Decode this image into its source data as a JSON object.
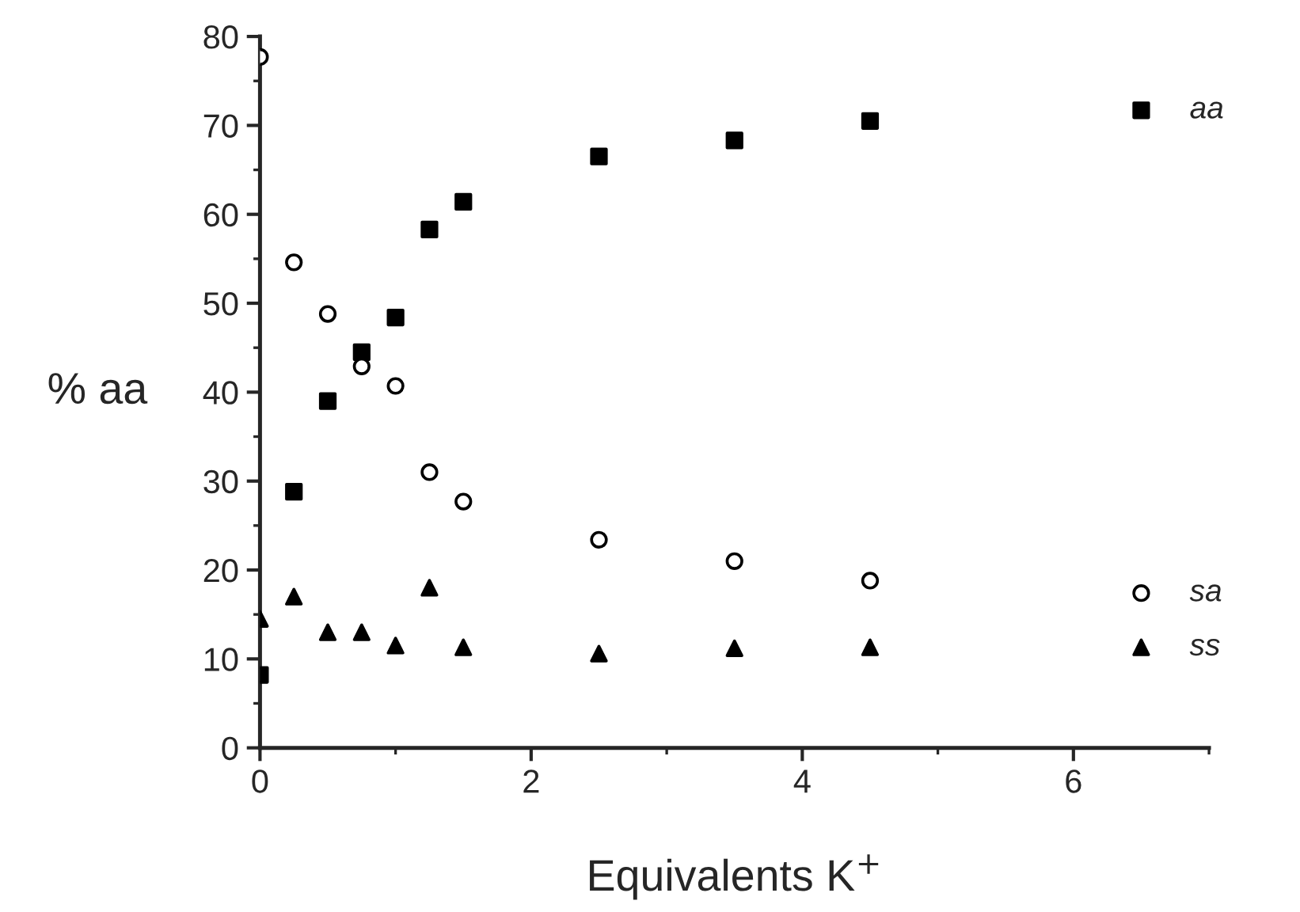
{
  "chart_data": {
    "type": "scatter",
    "xlabel": "Equivalents K$^{+}$",
    "ylabel": "% aa",
    "x": [
      0,
      0.25,
      0.5,
      0.75,
      1,
      1.25,
      1.5,
      2.5,
      3.5,
      4.5,
      6.5
    ],
    "series": [
      {
        "name": "aa",
        "color": "#000000",
        "marker": "square",
        "values": [
          8.2,
          28.8,
          39,
          44.5,
          48.4,
          58.3,
          61.4,
          66.5,
          68.3,
          70.5,
          71.7
        ]
      },
      {
        "name": "sa",
        "color": "#ffffff",
        "marker": "circle",
        "values": [
          77.7,
          54.6,
          48.8,
          42.9,
          40.7,
          31,
          27.7,
          23.4,
          21,
          18.8,
          17.4
        ]
      },
      {
        "name": "ss",
        "color": "#000000",
        "marker": "triangle",
        "values": [
          14.5,
          17,
          13,
          13,
          11.5,
          18,
          11.3,
          10.6,
          11.2,
          11.3,
          11.3
        ]
      }
    ],
    "xlim": [
      0,
      7
    ],
    "ylim": [
      0,
      80
    ],
    "xticks": [
      0,
      {
        "value": 1,
        "label": null
      },
      2,
      {
        "value": 3,
        "label": null
      },
      4,
      {
        "value": 5,
        "label": null
      },
      6,
      {
        "value": 7,
        "label": null
      }
    ],
    "yticks": [
      0,
      {
        "value": 5,
        "label": null
      },
      10,
      {
        "value": 15,
        "label": null
      },
      20,
      {
        "value": 25,
        "label": null
      },
      30,
      {
        "value": 35,
        "label": null
      },
      40,
      {
        "value": 45,
        "label": null
      },
      50,
      {
        "value": 55,
        "label": null
      },
      60,
      {
        "value": 65,
        "label": null
      },
      70,
      {
        "value": 75,
        "label": null
      },
      80
    ],
    "grid": false,
    "legend": false
  }
}
